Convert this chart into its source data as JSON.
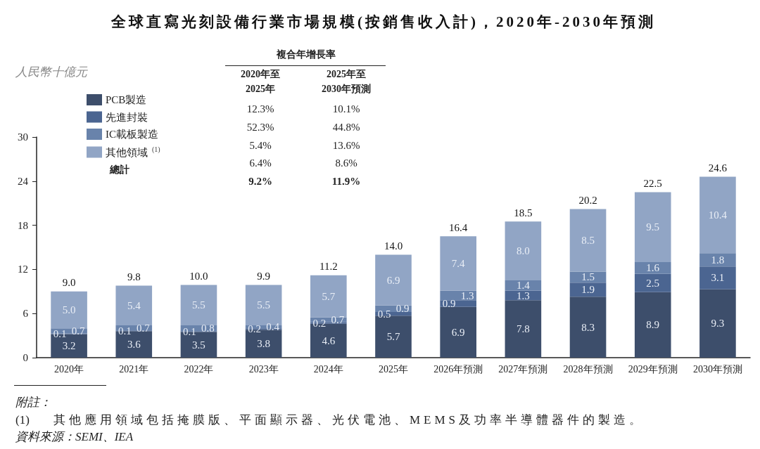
{
  "chart_data": {
    "type": "bar",
    "stacked": true,
    "title": "全球直寫光刻設備行業市場規模(按銷售收入計)，2020年-2030年預測",
    "ylabel": "人民幣十億元",
    "categories": [
      "2020年",
      "2021年",
      "2022年",
      "2023年",
      "2024年",
      "2025年",
      "2026年預測",
      "2027年預測",
      "2028年預測",
      "2029年預測",
      "2030年預測"
    ],
    "series": [
      {
        "name": "PCB製造",
        "color": "#3d4e6b",
        "values": [
          3.2,
          3.6,
          3.5,
          3.8,
          4.6,
          5.7,
          6.9,
          7.8,
          8.3,
          8.9,
          9.3
        ],
        "value_labels": [
          "3.2",
          "3.6",
          "3.5",
          "3.8",
          "4.6",
          "5.7",
          "6.9",
          "7.8",
          "8.3",
          "8.9",
          "9.3"
        ]
      },
      {
        "name": "先進封裝",
        "color": "#4b6591",
        "values": [
          0.1,
          0.1,
          0.1,
          0.2,
          0.2,
          0.5,
          0.9,
          1.3,
          1.9,
          2.5,
          3.1
        ],
        "value_labels": [
          "0.1",
          "0.1",
          "0.1",
          "0.2",
          "0.2",
          "0.5",
          "0.9",
          "1.3",
          "1.9",
          "2.5",
          "3.1"
        ]
      },
      {
        "name": "IC載板製造",
        "color": "#6983ab",
        "values": [
          0.7,
          0.7,
          0.8,
          0.4,
          0.7,
          0.9,
          1.3,
          1.4,
          1.5,
          1.6,
          1.8
        ],
        "value_labels": [
          "0.7",
          "0.7",
          "0.8",
          "0.4",
          "0.7",
          "0.9",
          "1.3",
          "1.4",
          "1.5",
          "1.6",
          "1.8"
        ]
      },
      {
        "name": "其他領域$^{(1)}$",
        "color": "#91a5c5",
        "values": [
          5.0,
          5.4,
          5.5,
          5.5,
          5.7,
          6.9,
          7.4,
          8.0,
          8.5,
          9.5,
          10.4
        ],
        "value_labels": [
          "5.0",
          "5.4",
          "5.5",
          "5.5",
          "5.7",
          "6.9",
          "7.4",
          "8.0",
          "8.5",
          "9.5",
          "10.4"
        ]
      }
    ],
    "totals": [
      "9.0",
      "9.8",
      "10.0",
      "9.9",
      "11.2",
      "14.0",
      "16.4",
      "18.5",
      "20.2",
      "22.5",
      "24.6"
    ],
    "ylim": [
      0,
      30
    ],
    "yticks": [
      0,
      6,
      12,
      18,
      24,
      30
    ],
    "grid": false,
    "legend": "top left",
    "annotations": [
      "複合年增長率",
      "2020年至\n2025年",
      "2025年至\n2030年預測",
      "12.3%",
      "10.1%",
      "52.3%",
      "44.8%",
      "5.4%",
      "13.6%",
      "6.4%",
      "8.6%",
      "總計",
      "9.2%",
      "11.9%",
      "附註：",
      "(1) 其他應用領域包括掩膜版、平面顯示器、光伏電池、MEMS及功率半導體器件的製造。",
      "資料來源：SEMI、IEA"
    ]
  }
}
